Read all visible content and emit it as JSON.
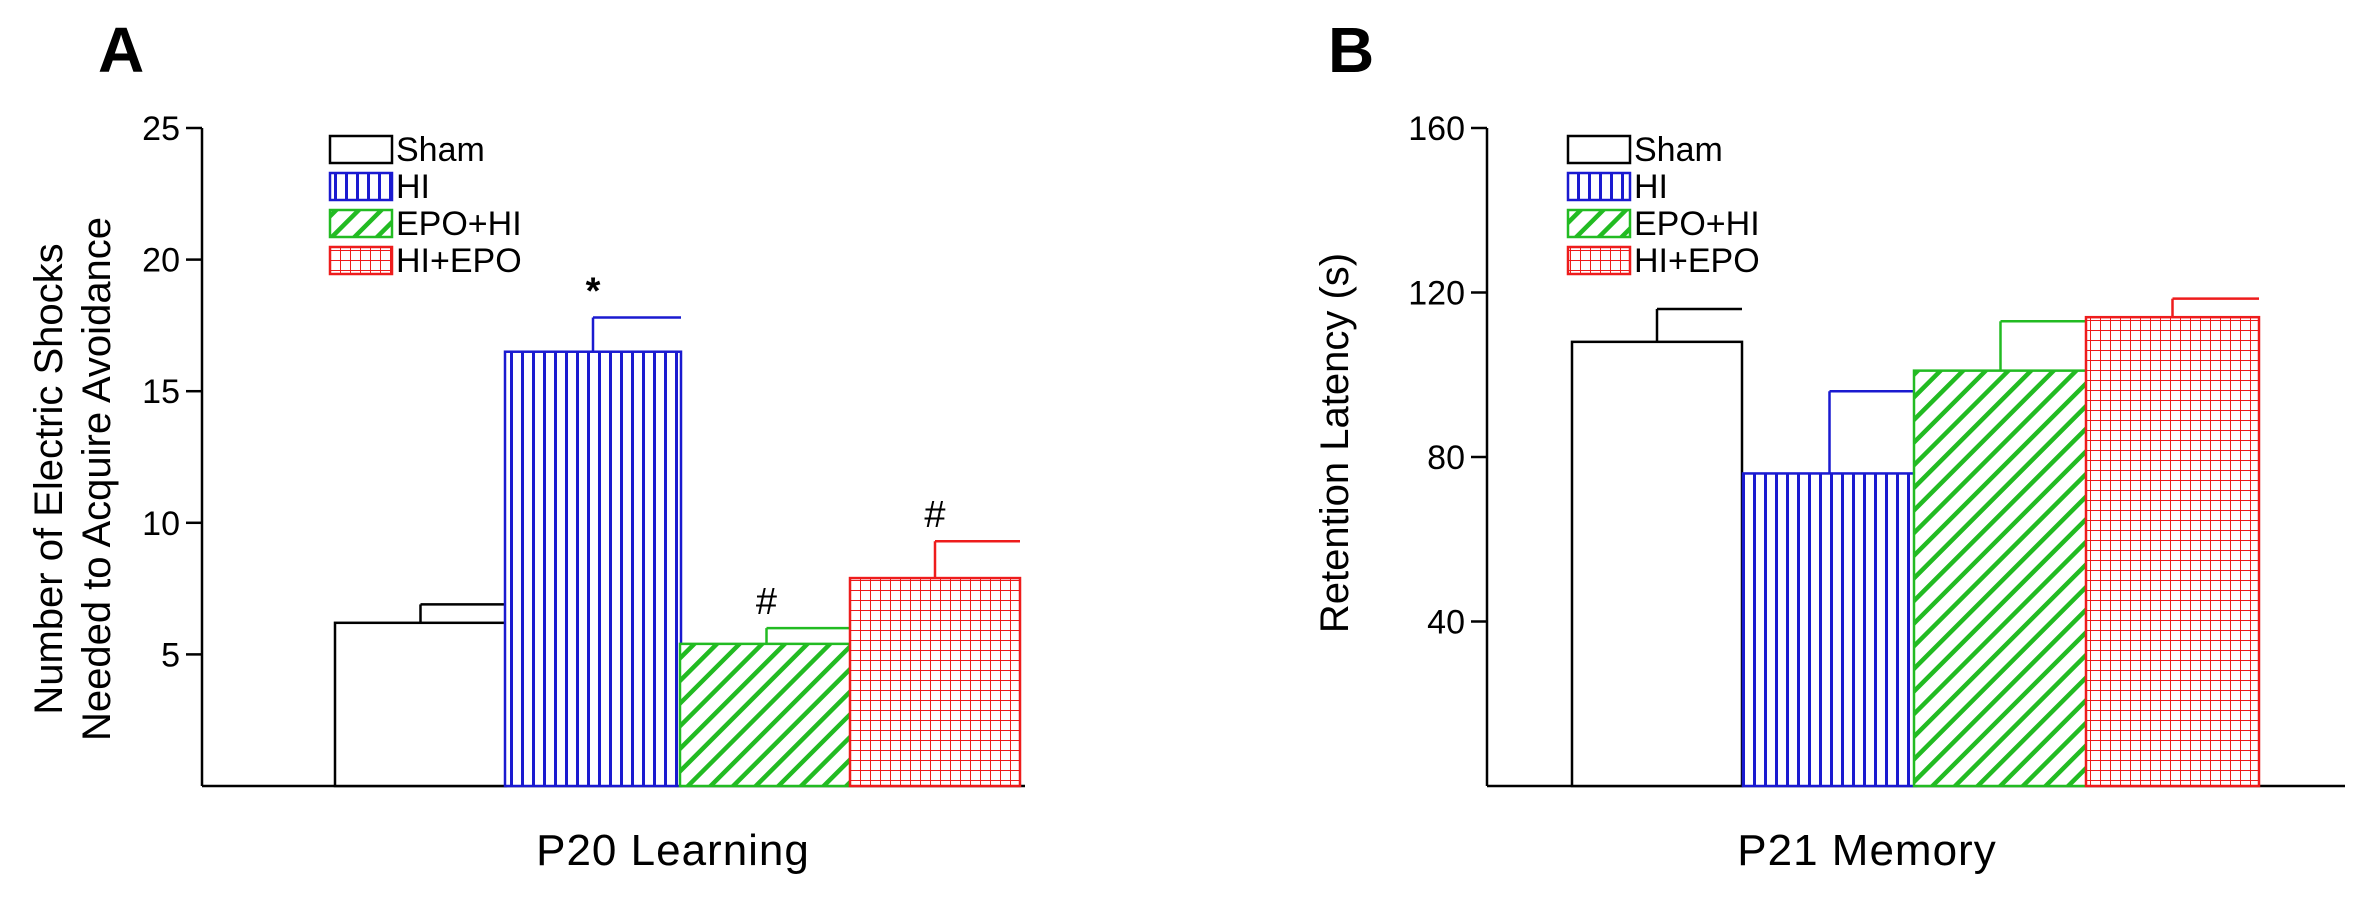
{
  "colors": {
    "Sham": "#000000",
    "HI": "#1a1ad0",
    "EPO+HI": "#22bb22",
    "HI+EPO": "#ee1c1c"
  },
  "chart_data": [
    {
      "type": "bar",
      "panel": "A",
      "xlabel": "P20 Learning",
      "ylabel_lines": [
        "Number of Electric Shocks",
        "Needed to Acquire Avoidance"
      ],
      "ylim": [
        0,
        25
      ],
      "yticks": [
        5,
        10,
        15,
        20,
        25
      ],
      "legend": [
        "Sham",
        "HI",
        "EPO+HI",
        "HI+EPO"
      ],
      "legend_position": "top-left",
      "series": [
        {
          "name": "Sham",
          "value": 6.2,
          "error": 0.7,
          "marker": ""
        },
        {
          "name": "HI",
          "value": 16.5,
          "error": 1.3,
          "marker": "*"
        },
        {
          "name": "EPO+HI",
          "value": 5.4,
          "error": 0.6,
          "marker": "#"
        },
        {
          "name": "HI+EPO",
          "value": 7.9,
          "error": 1.4,
          "marker": "#"
        }
      ]
    },
    {
      "type": "bar",
      "panel": "B",
      "xlabel": "P21 Memory",
      "ylabel_lines": [
        "Retention Latency (s)"
      ],
      "ylim": [
        0,
        160
      ],
      "yticks": [
        40,
        80,
        120,
        160
      ],
      "legend": [
        "Sham",
        "HI",
        "EPO+HI",
        "HI+EPO"
      ],
      "legend_position": "top-left",
      "series": [
        {
          "name": "Sham",
          "value": 108,
          "error": 8,
          "marker": ""
        },
        {
          "name": "HI",
          "value": 76,
          "error": 20,
          "marker": ""
        },
        {
          "name": "EPO+HI",
          "value": 101,
          "error": 12,
          "marker": ""
        },
        {
          "name": "HI+EPO",
          "value": 114,
          "error": 4.5,
          "marker": ""
        }
      ]
    }
  ]
}
